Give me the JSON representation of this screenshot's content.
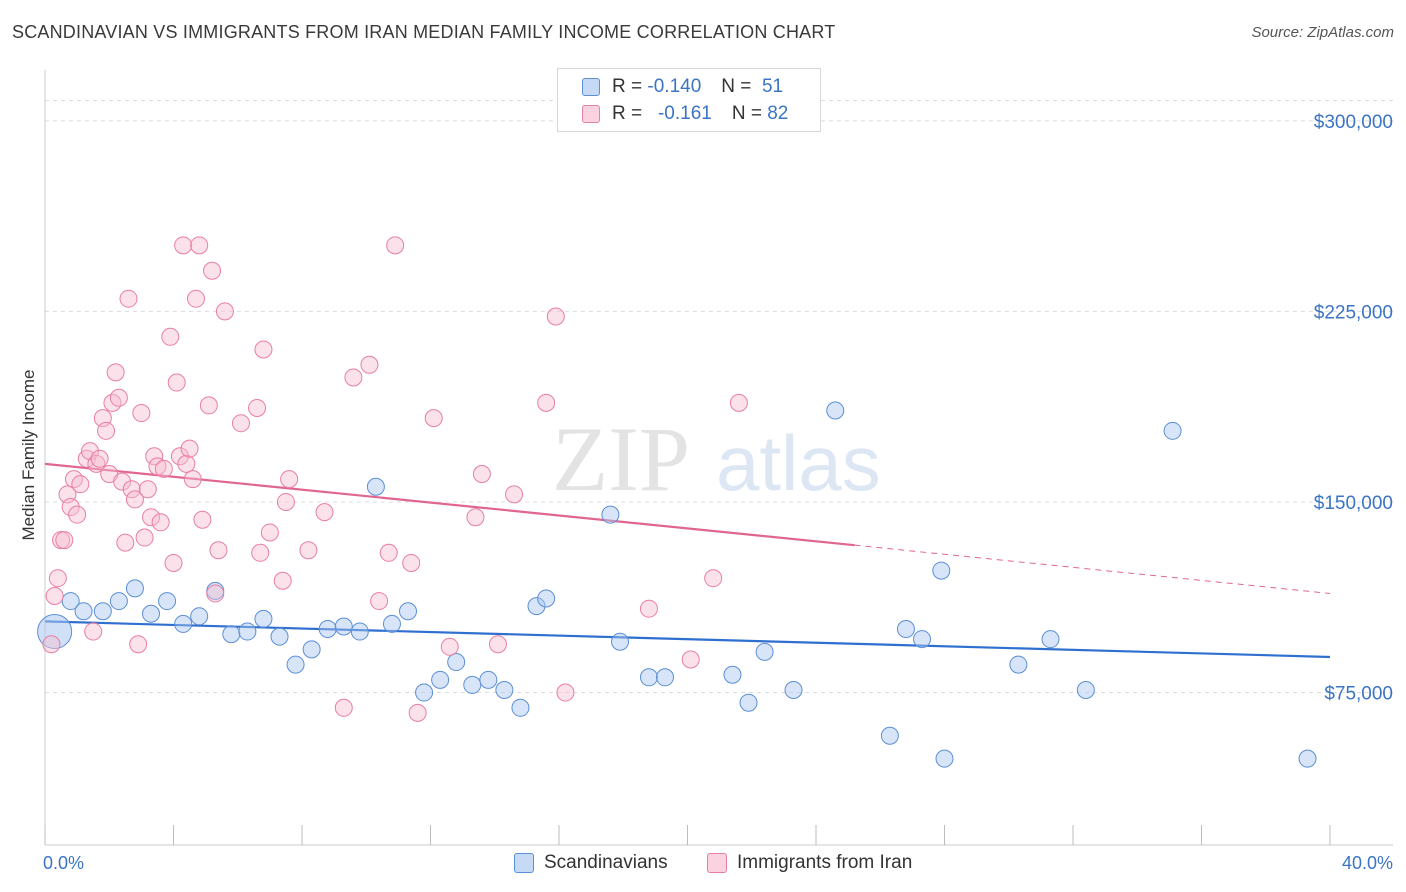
{
  "title": "SCANDINAVIAN VS IMMIGRANTS FROM IRAN MEDIAN FAMILY INCOME CORRELATION CHART",
  "source": "Source: ZipAtlas.com",
  "watermark": {
    "zip": "ZIP",
    "atlas": "atlas"
  },
  "legend": {
    "r_label": "R =",
    "n_label": "N =",
    "rows": [
      {
        "name": "Scandinavians",
        "r": "-0.140",
        "n": "51",
        "color": "#a9c6f0",
        "stroke": "#5b8fd6"
      },
      {
        "name": "Immigrants from Iran",
        "r": "-0.161",
        "n": "82",
        "color": "#f7bcd0",
        "stroke": "#e87fa2"
      }
    ]
  },
  "chart_data": {
    "type": "scatter",
    "ylabel": "Median Family Income",
    "xlim": [
      0,
      40
    ],
    "ylim": [
      15000,
      320000
    ],
    "x_tick_labels": [
      "0.0%",
      "40.0%"
    ],
    "y_ticks": [
      75000,
      150000,
      225000,
      300000
    ],
    "y_tick_labels": [
      "$75,000",
      "$150,000",
      "$225,000",
      "$300,000"
    ],
    "grid": true,
    "series": [
      {
        "name": "Scandinavians",
        "color": "#a9c6f0",
        "stroke": "#5b8fd6",
        "line_color": "#2f6fcf",
        "trend": {
          "x1": 0,
          "y1": 103000,
          "x2": 40,
          "y2": 89000
        },
        "points": [
          [
            0.3,
            99000
          ],
          [
            0.8,
            111000
          ],
          [
            1.2,
            107000
          ],
          [
            1.8,
            107000
          ],
          [
            2.3,
            111000
          ],
          [
            2.8,
            116000
          ],
          [
            3.3,
            106000
          ],
          [
            3.8,
            111000
          ],
          [
            4.3,
            102000
          ],
          [
            4.8,
            105000
          ],
          [
            5.3,
            115000
          ],
          [
            5.8,
            98000
          ],
          [
            6.3,
            99000
          ],
          [
            6.8,
            104000
          ],
          [
            7.3,
            97000
          ],
          [
            7.8,
            86000
          ],
          [
            8.3,
            92000
          ],
          [
            8.8,
            100000
          ],
          [
            9.3,
            101000
          ],
          [
            9.8,
            99000
          ],
          [
            10.3,
            156000
          ],
          [
            10.8,
            102000
          ],
          [
            11.3,
            107000
          ],
          [
            11.8,
            75000
          ],
          [
            12.3,
            80000
          ],
          [
            12.8,
            87000
          ],
          [
            13.3,
            78000
          ],
          [
            13.8,
            80000
          ],
          [
            14.3,
            76000
          ],
          [
            14.8,
            69000
          ],
          [
            15.3,
            109000
          ],
          [
            15.6,
            112000
          ],
          [
            17.6,
            145000
          ],
          [
            17.9,
            95000
          ],
          [
            18.8,
            81000
          ],
          [
            19.3,
            81000
          ],
          [
            21.4,
            82000
          ],
          [
            21.9,
            71000
          ],
          [
            22.4,
            91000
          ],
          [
            23.3,
            76000
          ],
          [
            24.6,
            186000
          ],
          [
            26.3,
            58000
          ],
          [
            26.8,
            100000
          ],
          [
            27.3,
            96000
          ],
          [
            27.9,
            123000
          ],
          [
            28.0,
            49000
          ],
          [
            30.3,
            86000
          ],
          [
            31.3,
            96000
          ],
          [
            32.4,
            76000
          ],
          [
            35.1,
            178000
          ],
          [
            39.3,
            49000
          ]
        ]
      },
      {
        "name": "Immigrants from Iran",
        "color": "#f7bcd0",
        "stroke": "#e87fa2",
        "line_color": "#e0668f",
        "trend": {
          "x1": 0,
          "y1": 165000,
          "x2": 25.2,
          "y2": 133000
        },
        "trend_dash": {
          "x1": 25.2,
          "y1": 133000,
          "x2": 40,
          "y2": 114000
        },
        "points": [
          [
            0.2,
            94000
          ],
          [
            0.3,
            113000
          ],
          [
            0.4,
            120000
          ],
          [
            0.5,
            135000
          ],
          [
            0.6,
            135000
          ],
          [
            0.7,
            153000
          ],
          [
            0.8,
            148000
          ],
          [
            0.9,
            159000
          ],
          [
            1.0,
            145000
          ],
          [
            1.1,
            157000
          ],
          [
            1.3,
            167000
          ],
          [
            1.4,
            170000
          ],
          [
            1.5,
            99000
          ],
          [
            1.6,
            165000
          ],
          [
            1.7,
            167000
          ],
          [
            1.8,
            183000
          ],
          [
            1.9,
            178000
          ],
          [
            2.0,
            161000
          ],
          [
            2.1,
            189000
          ],
          [
            2.2,
            201000
          ],
          [
            2.3,
            191000
          ],
          [
            2.4,
            158000
          ],
          [
            2.5,
            134000
          ],
          [
            2.6,
            230000
          ],
          [
            2.7,
            155000
          ],
          [
            2.8,
            151000
          ],
          [
            2.9,
            94000
          ],
          [
            3.0,
            185000
          ],
          [
            3.1,
            136000
          ],
          [
            3.2,
            155000
          ],
          [
            3.3,
            144000
          ],
          [
            3.4,
            168000
          ],
          [
            3.5,
            164000
          ],
          [
            3.6,
            142000
          ],
          [
            3.7,
            163000
          ],
          [
            3.9,
            215000
          ],
          [
            4.0,
            126000
          ],
          [
            4.1,
            197000
          ],
          [
            4.2,
            168000
          ],
          [
            4.3,
            251000
          ],
          [
            4.4,
            165000
          ],
          [
            4.5,
            171000
          ],
          [
            4.6,
            159000
          ],
          [
            4.7,
            230000
          ],
          [
            4.8,
            251000
          ],
          [
            4.9,
            143000
          ],
          [
            5.1,
            188000
          ],
          [
            5.2,
            241000
          ],
          [
            5.3,
            114000
          ],
          [
            5.4,
            131000
          ],
          [
            5.6,
            225000
          ],
          [
            6.1,
            181000
          ],
          [
            6.6,
            187000
          ],
          [
            6.7,
            130000
          ],
          [
            6.8,
            210000
          ],
          [
            7.0,
            138000
          ],
          [
            7.4,
            119000
          ],
          [
            7.5,
            150000
          ],
          [
            7.6,
            159000
          ],
          [
            8.2,
            131000
          ],
          [
            8.7,
            146000
          ],
          [
            9.3,
            69000
          ],
          [
            9.6,
            199000
          ],
          [
            10.1,
            204000
          ],
          [
            10.4,
            111000
          ],
          [
            10.7,
            130000
          ],
          [
            10.9,
            251000
          ],
          [
            11.4,
            126000
          ],
          [
            11.6,
            67000
          ],
          [
            12.1,
            183000
          ],
          [
            12.6,
            93000
          ],
          [
            13.4,
            144000
          ],
          [
            13.6,
            161000
          ],
          [
            14.1,
            94000
          ],
          [
            14.6,
            153000
          ],
          [
            15.6,
            189000
          ],
          [
            15.9,
            223000
          ],
          [
            16.2,
            75000
          ],
          [
            18.8,
            108000
          ],
          [
            20.1,
            88000
          ],
          [
            20.8,
            120000
          ],
          [
            21.6,
            189000
          ]
        ]
      }
    ]
  }
}
